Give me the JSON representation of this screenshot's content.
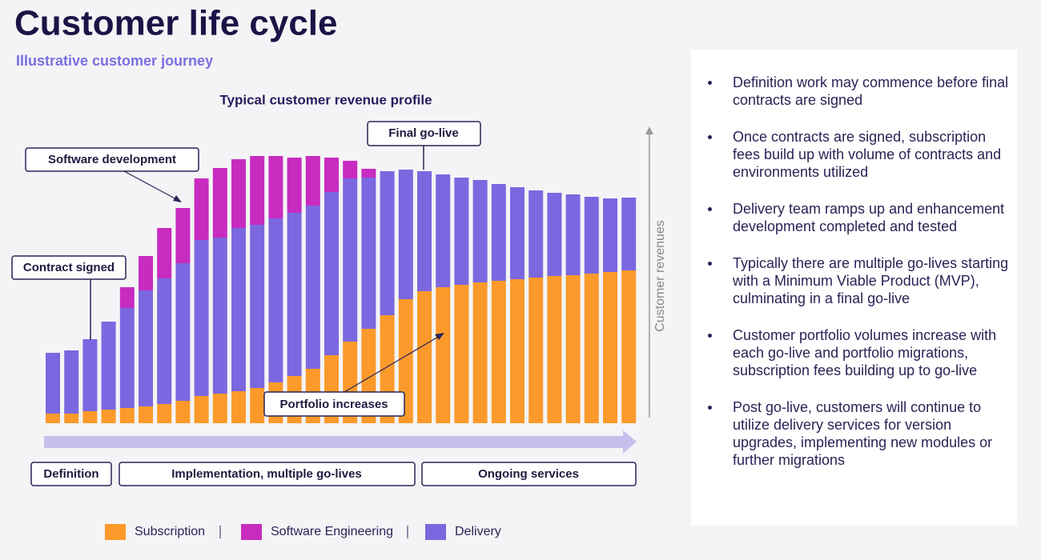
{
  "header": {
    "title": "Customer life cycle",
    "subtitle": "Illustrative customer journey"
  },
  "chart_data": {
    "type": "stacked_bar",
    "title": "Typical customer revenue profile",
    "y_label": "Customer revenues",
    "ylim": [
      0,
      370
    ],
    "series": [
      {
        "name": "Subscription",
        "color": "#fb9a2a",
        "values": [
          12,
          12,
          15,
          17,
          19,
          21,
          24,
          28,
          34,
          37,
          40,
          44,
          51,
          59,
          68,
          85,
          102,
          118,
          135,
          155,
          165,
          170,
          173,
          176,
          178,
          180,
          182,
          184,
          185,
          187,
          189,
          191
        ]
      },
      {
        "name": "Software Engineering",
        "color": "#c72bbf",
        "values": [
          0,
          0,
          0,
          0,
          26,
          43,
          63,
          69,
          77,
          87,
          86,
          86,
          78,
          69,
          62,
          43,
          22,
          11,
          0,
          0,
          0,
          0,
          0,
          0,
          0,
          0,
          0,
          0,
          0,
          0,
          0,
          0
        ]
      },
      {
        "name": "Delivery",
        "color": "#7b68e0",
        "values": [
          76,
          79,
          90,
          110,
          125,
          145,
          157,
          172,
          195,
          195,
          204,
          204,
          205,
          204,
          204,
          204,
          204,
          189,
          180,
          162,
          150,
          141,
          134,
          128,
          121,
          115,
          109,
          104,
          101,
          96,
          92,
          91
        ]
      }
    ],
    "annotations": [
      "Contract signed",
      "Software development",
      "Final go-live",
      "Portfolio increases"
    ],
    "phases": [
      "Definition",
      "Implementation, multiple go-lives",
      "Ongoing services"
    ]
  },
  "notes": [
    "Definition work may commence before final contracts are signed",
    "Once contracts are signed, subscription fees build up with volume of contracts and environments utilized",
    "Delivery team ramps up and enhancement development completed and tested",
    "Typically there are multiple go-lives starting with a Minimum Viable Product (MVP), culminating in a final go-live",
    "Customer portfolio volumes increase with each go-live and portfolio migrations, subscription fees building up to go-live",
    "Post go-live, customers will continue to utilize delivery services for version upgrades, implementing new modules or further migrations"
  ]
}
